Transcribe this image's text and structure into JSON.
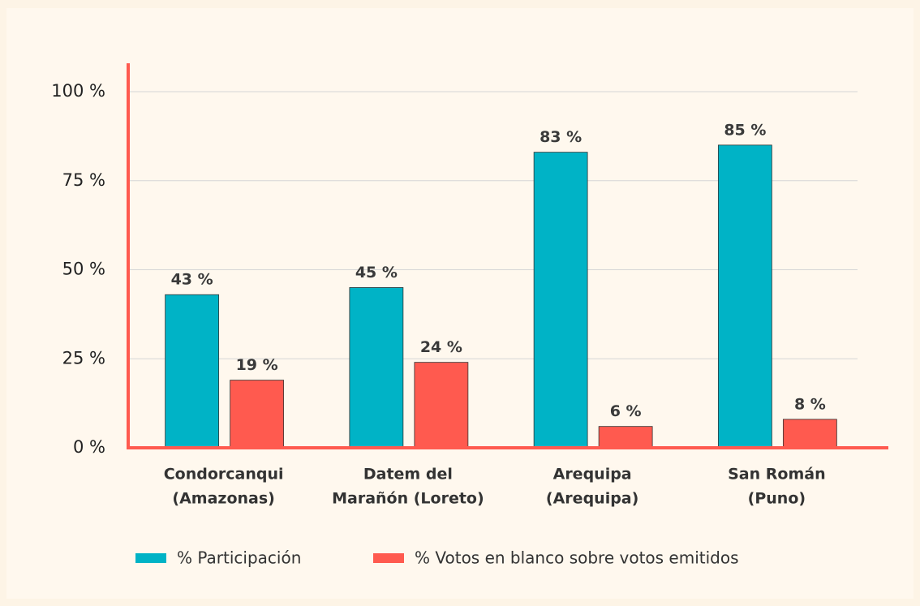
{
  "chart_data": {
    "type": "bar",
    "categories": [
      [
        "Condorcanqui",
        "(Amazonas)"
      ],
      [
        "Datem del",
        "Marañón (Loreto)"
      ],
      [
        "Arequipa",
        "(Arequipa)"
      ],
      [
        "San Román",
        "(Puno)"
      ]
    ],
    "series": [
      {
        "name": "% Participación",
        "color": "#00b3c6",
        "values": [
          43,
          45,
          83,
          85
        ],
        "value_labels": [
          "43 %",
          "45 %",
          "83 %",
          "85 %"
        ]
      },
      {
        "name": "% Votos en blanco sobre votos emitidos",
        "color": "#ff5a4f",
        "values": [
          19,
          24,
          6,
          8
        ],
        "value_labels": [
          "19 %",
          "24 %",
          "6 %",
          "8 %"
        ]
      }
    ],
    "ylim": [
      0,
      100
    ],
    "yticks": [
      {
        "value": 0,
        "label": "0 %"
      },
      {
        "value": 25,
        "label": "25 %"
      },
      {
        "value": 50,
        "label": "50 %"
      },
      {
        "value": 75,
        "label": "75 %"
      },
      {
        "value": 100,
        "label": "100 %"
      }
    ],
    "grid": true,
    "legend": "bottom"
  }
}
